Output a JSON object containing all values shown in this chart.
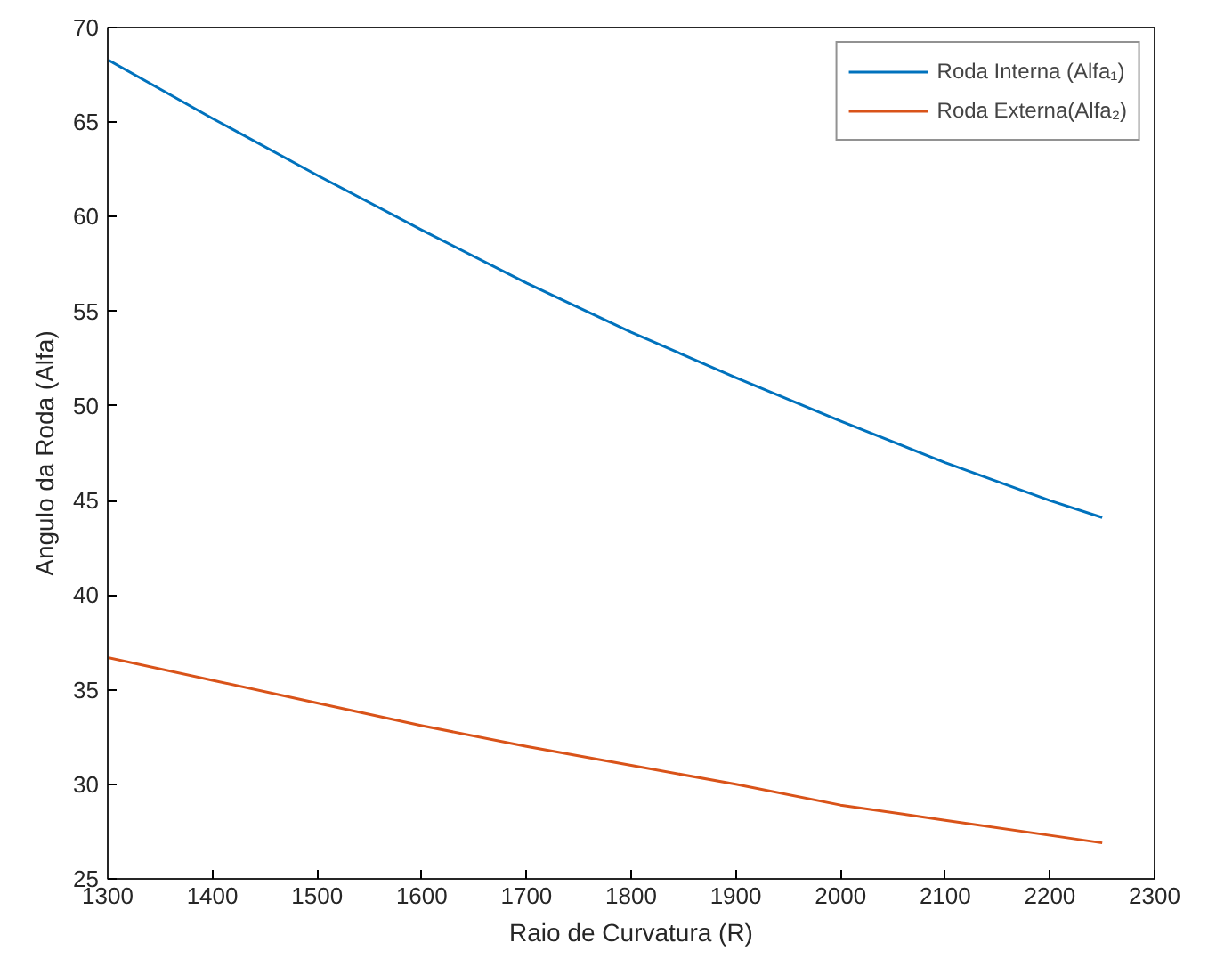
{
  "chart_data": {
    "type": "line",
    "xlabel": "Raio de Curvatura (R)",
    "ylabel": "Angulo da Roda (Alfa)",
    "x": [
      1300,
      1400,
      1500,
      1600,
      1700,
      1800,
      1900,
      2000,
      2100,
      2200,
      2250
    ],
    "series": [
      {
        "name": "Roda Interna (Alfa₁)",
        "color": "#0072bd",
        "values": [
          68.3,
          65.2,
          62.2,
          59.3,
          56.5,
          53.9,
          51.5,
          49.2,
          47.0,
          45.0,
          44.1
        ]
      },
      {
        "name": "Roda Externa(Alfa₂)",
        "color": "#d95319",
        "values": [
          36.7,
          35.5,
          34.3,
          33.1,
          32.0,
          31.0,
          30.0,
          28.9,
          28.1,
          27.3,
          26.9
        ]
      }
    ],
    "xlim": [
      1300,
      2300
    ],
    "ylim": [
      25,
      70
    ],
    "xticks": [
      1300,
      1400,
      1500,
      1600,
      1700,
      1800,
      1900,
      2000,
      2100,
      2200,
      2300
    ],
    "yticks": [
      25,
      30,
      35,
      40,
      45,
      50,
      55,
      60,
      65,
      70
    ],
    "grid": false,
    "legend": "top right",
    "marker": "none",
    "line_style": "solid"
  }
}
